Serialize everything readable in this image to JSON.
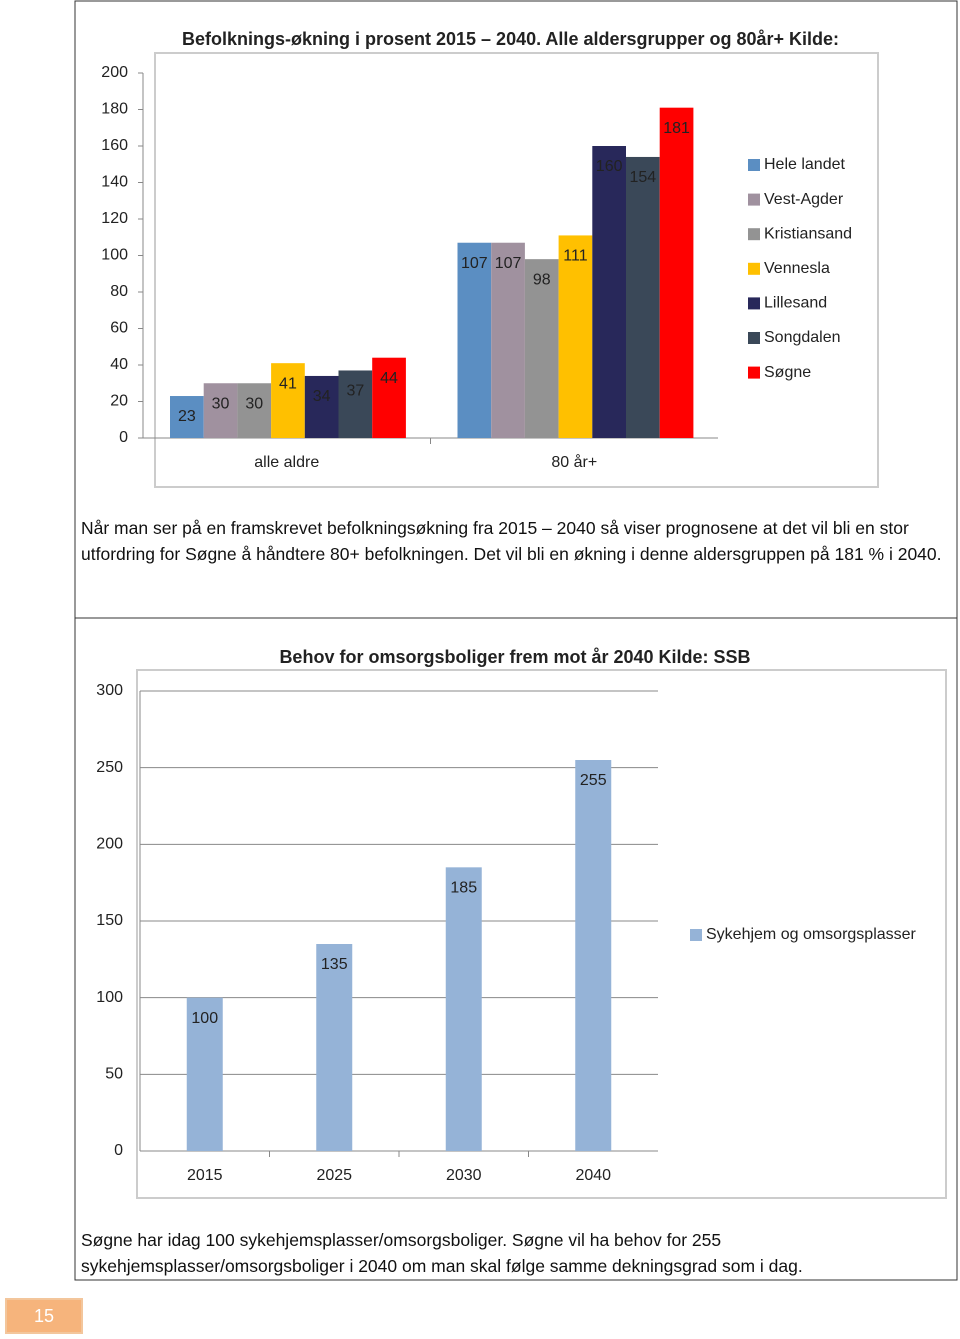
{
  "chart_data": [
    {
      "type": "bar",
      "title": "Befolknings-økning i prosent 2015 – 2040. Alle aldersgrupper og 80år+ Kilde:",
      "categories": [
        "alle aldre",
        "80 år+"
      ],
      "series": [
        {
          "name": "Hele landet",
          "color": "#5b8ec2",
          "values": [
            23,
            107
          ]
        },
        {
          "name": "Vest-Agder",
          "color": "#a0919f",
          "values": [
            30,
            107
          ]
        },
        {
          "name": "Kristiansand",
          "color": "#939393",
          "values": [
            30,
            98
          ]
        },
        {
          "name": "Vennesla",
          "color": "#ffc000",
          "values": [
            41,
            111
          ]
        },
        {
          "name": "Lillesand",
          "color": "#28285a",
          "values": [
            34,
            160
          ]
        },
        {
          "name": "Songdalen",
          "color": "#3a4858",
          "values": [
            37,
            154
          ]
        },
        {
          "name": "Søgne",
          "color": "#ff0000",
          "values": [
            44,
            181
          ]
        }
      ],
      "ylim": [
        0,
        200
      ],
      "yticks": [
        0,
        20,
        40,
        60,
        80,
        100,
        120,
        140,
        160,
        180,
        200
      ],
      "grid": false,
      "legend": "right"
    },
    {
      "type": "bar",
      "title": "Behov for omsorgsboliger frem mot år 2040 Kilde: SSB",
      "categories": [
        "2015",
        "2025",
        "2030",
        "2040"
      ],
      "series": [
        {
          "name": "Sykehjem og omsorgsplasser",
          "color": "#95b3d7",
          "values": [
            100,
            135,
            185,
            255
          ]
        }
      ],
      "ylim": [
        0,
        300
      ],
      "yticks": [
        0,
        50,
        100,
        150,
        200,
        250,
        300
      ],
      "grid": true,
      "legend": "right"
    }
  ],
  "paragraphs": [
    "Når man ser på en framskrevet befolkningsøkning fra 2015 – 2040 så viser prognosene at det vil bli en stor utfordring for Søgne å håndtere 80+ befolkningen. Det vil bli en økning i denne aldersgruppen på 181 % i 2040.",
    "Søgne har idag 100 sykehjemsplasser/omsorgsboliger. Søgne vil ha behov for 255 sykehjemsplasser/omsorgsboliger i 2040 om man skal følge samme dekningsgrad som i dag."
  ],
  "page_number": "15"
}
